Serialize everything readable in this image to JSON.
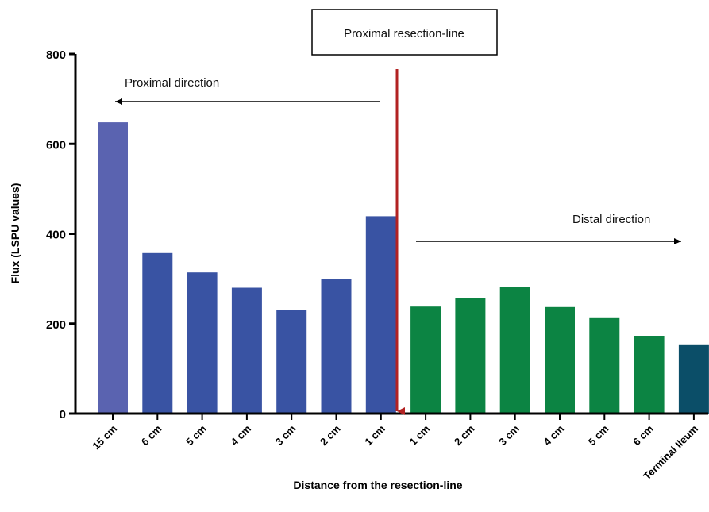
{
  "chart_data": {
    "type": "bar",
    "title": "",
    "xlabel": "Distance from the resection-line",
    "ylabel": "Flux (LSPU values)",
    "ylim": [
      0,
      800
    ],
    "yticks": [
      0,
      200,
      400,
      600,
      800
    ],
    "grid": false,
    "categories": [
      "15 cm",
      "6 cm",
      "5 cm",
      "4 cm",
      "3 cm",
      "2 cm",
      "1 cm",
      "1 cm",
      "2 cm",
      "3 cm",
      "4 cm",
      "5 cm",
      "6 cm",
      "Terminal Ileum"
    ],
    "values": [
      648,
      357,
      314,
      280,
      231,
      299,
      439,
      238,
      256,
      281,
      237,
      214,
      173,
      154
    ],
    "bar_colors": [
      "#5a63b0",
      "#3953a3",
      "#3953a3",
      "#3953a3",
      "#3953a3",
      "#3953a3",
      "#3953a3",
      "#0c8443",
      "#0c8443",
      "#0c8443",
      "#0c8443",
      "#0c8443",
      "#0c8443",
      "#0b4e68"
    ],
    "annotations": {
      "resection_label": "Proximal resection-line",
      "proximal_direction": "Proximal direction",
      "distal_direction": "Distal direction"
    },
    "resection_line_color": "#b22222"
  }
}
